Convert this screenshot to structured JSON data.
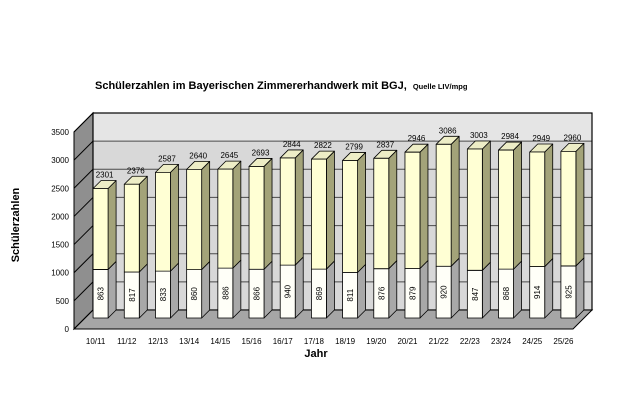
{
  "page": {
    "background": "#ffffff"
  },
  "chart_data": {
    "type": "bar",
    "variant": "3d-stacked-column",
    "title": "Schülerzahlen im Bayerischen Zimmererhandwerk mit BGJ,",
    "source_note": "Quelle LIV/mpg",
    "xlabel": "Jahr",
    "ylabel": "Schülerzahlen",
    "ylim": [
      0,
      3500
    ],
    "ytick_step": 500,
    "yticks": [
      0,
      500,
      1000,
      1500,
      2000,
      2500,
      3000,
      3500
    ],
    "grid": true,
    "legend": "none",
    "categories": [
      "10/11",
      "11/12",
      "12/13",
      "13/14",
      "14/15",
      "15/16",
      "16/17",
      "17/18",
      "18/19",
      "19/20",
      "20/21",
      "21/22",
      "22/23",
      "23/24",
      "24/25",
      "25/26"
    ],
    "series": [
      {
        "name": "bottom-segment",
        "values": [
          863,
          817,
          833,
          860,
          886,
          866,
          940,
          869,
          811,
          876,
          879,
          920,
          847,
          868,
          914,
          925
        ]
      },
      {
        "name": "total",
        "values": [
          2301,
          2376,
          2587,
          2640,
          2645,
          2693,
          2844,
          2822,
          2799,
          2837,
          2946,
          3086,
          3003,
          2984,
          2949,
          2960
        ]
      }
    ],
    "colors": {
      "bar_top_front": "#FFFFD4",
      "bar_top_side": "#A3A379",
      "bar_top_cap": "#EDEDC6",
      "bar_bottom_front": "#FFFFF8",
      "bar_bottom_side": "#A8A8A8",
      "back_wall": "#D8D8D8",
      "back_wall_upper_band": "#E5E5E5",
      "left_wall": "#8F8F8F",
      "floor": "#A6A6A6",
      "gridline": "#4A4A4A",
      "edge": "#000000"
    }
  }
}
